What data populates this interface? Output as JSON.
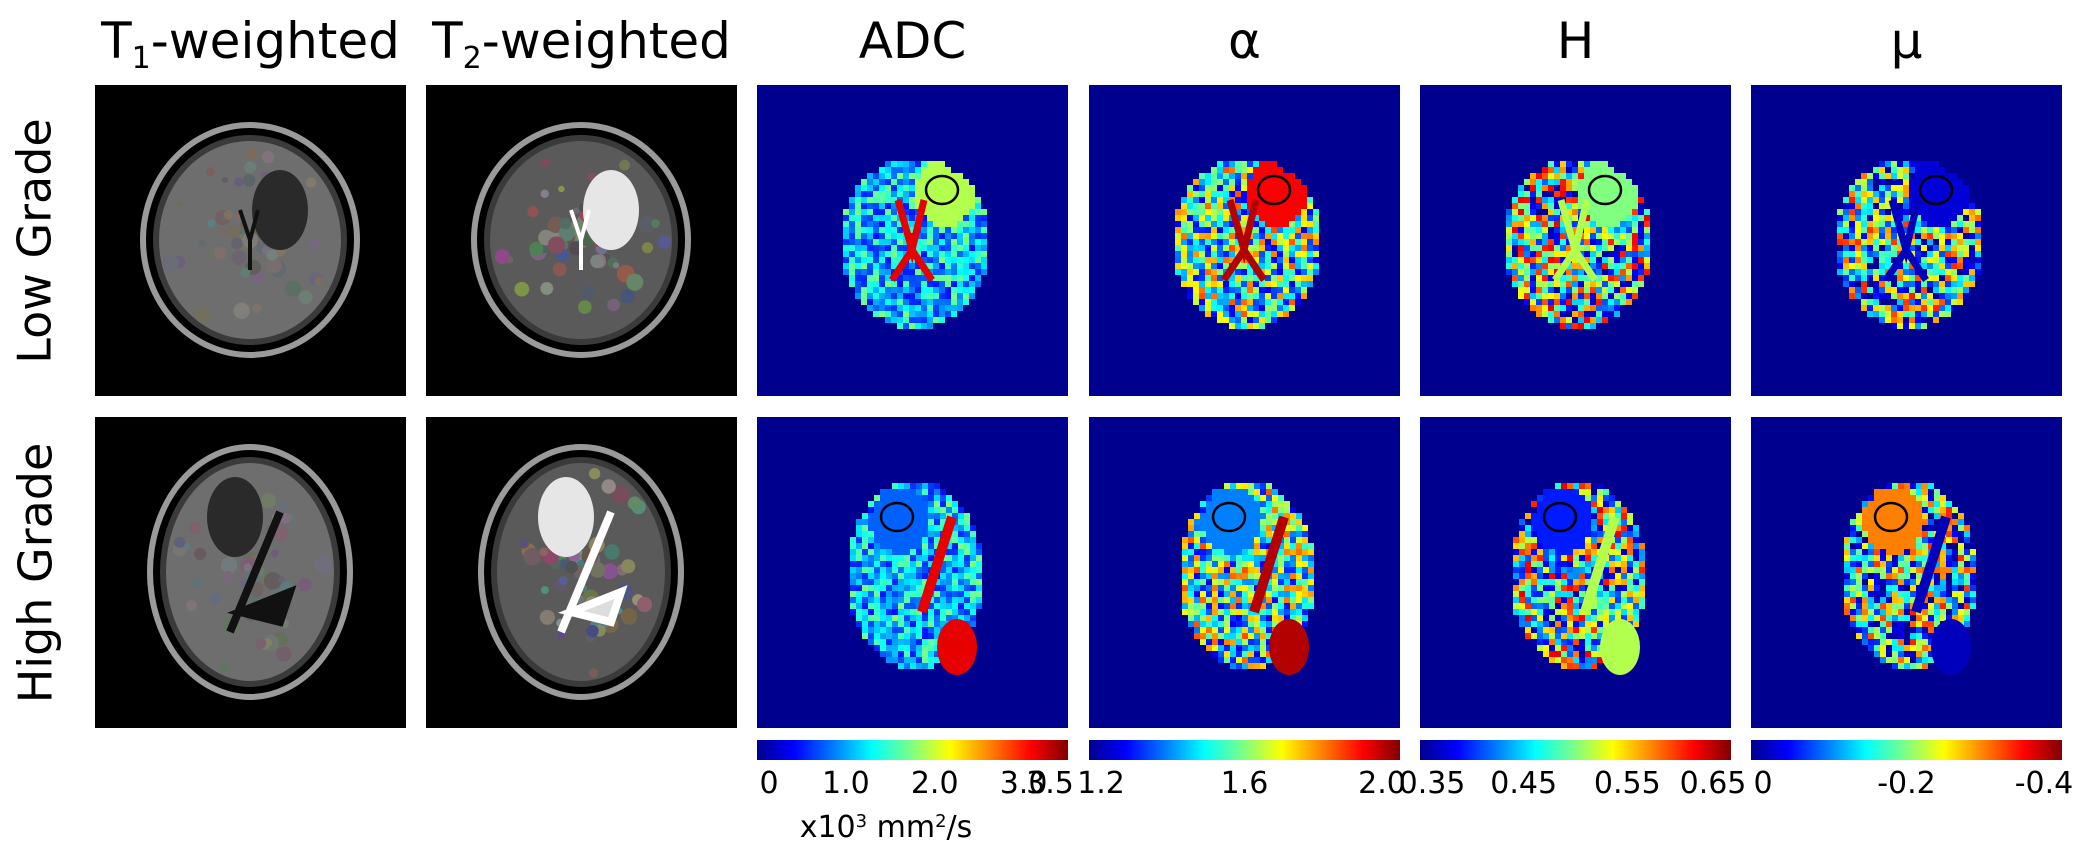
{
  "columns": [
    {
      "id": "t1",
      "main": "T",
      "sub": "1",
      "suffix": "-weighted"
    },
    {
      "id": "t2",
      "main": "T",
      "sub": "2",
      "suffix": "-weighted"
    },
    {
      "id": "adc",
      "main": "ADC"
    },
    {
      "id": "alpha",
      "main": "α"
    },
    {
      "id": "h",
      "main": "H"
    },
    {
      "id": "mu",
      "main": "μ"
    }
  ],
  "rows": [
    {
      "id": "low",
      "label": "Low Grade"
    },
    {
      "id": "high",
      "label": "High Grade"
    }
  ],
  "colorbars": [
    {
      "id": "adc",
      "ticks": [
        {
          "label": "0",
          "value": 0
        },
        {
          "label": "1.0",
          "value": 1.0
        },
        {
          "label": "2.0",
          "value": 2.0
        },
        {
          "label": "3.0",
          "value": 3.0
        },
        {
          "label": "3.5",
          "value": 3.5
        }
      ],
      "range": [
        0,
        3.5
      ]
    },
    {
      "id": "alpha",
      "ticks": [
        {
          "label": "1.2",
          "value": 1.2
        },
        {
          "label": "1.6",
          "value": 1.6
        },
        {
          "label": "2.0",
          "value": 2.0
        }
      ],
      "range": [
        1.2,
        2.0
      ]
    },
    {
      "id": "h",
      "ticks": [
        {
          "label": "0.35",
          "value": 0.35
        },
        {
          "label": "0.45",
          "value": 0.45
        },
        {
          "label": "0.55",
          "value": 0.55
        },
        {
          "label": "0.65",
          "value": 0.65
        }
      ],
      "range": [
        0.35,
        0.65
      ]
    },
    {
      "id": "mu",
      "ticks": [
        {
          "label": "0",
          "value": 0
        },
        {
          "label": "-0.2",
          "value": -0.2
        },
        {
          "label": "-0.4",
          "value": -0.4
        }
      ],
      "range": [
        0,
        -0.4
      ]
    }
  ],
  "adc_unit": {
    "prefix": "x10",
    "exp": "3",
    "mid": " mm",
    "exp2": "2",
    "suffix": "/s"
  },
  "colors": {
    "jet_background": "#00008f",
    "roi_outline": "#000000",
    "grayscale_background": "#000000"
  }
}
